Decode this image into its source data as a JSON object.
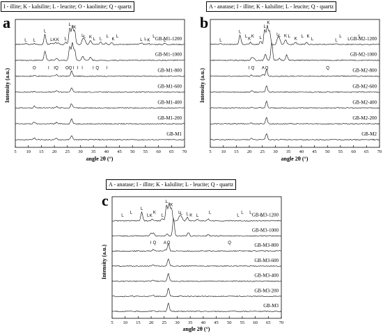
{
  "chart_data": [
    {
      "type": "line",
      "panel": "a",
      "legend": "I - illite; K - kalsilite; L - leucite; O - kaolinite; Q - quartz",
      "xlabel": "angle 2θ (°)",
      "ylabel": "Intensity (a.u.)",
      "xlim": [
        5,
        70
      ],
      "xticks": [
        5,
        10,
        15,
        20,
        25,
        30,
        35,
        40,
        45,
        50,
        55,
        60,
        65,
        70
      ],
      "series": [
        {
          "name": "GB-M1-1200",
          "peaks": [
            [
              16.4,
              0.55
            ],
            [
              25.9,
              0.9
            ],
            [
              26.9,
              1.0
            ],
            [
              27.8,
              0.75
            ],
            [
              30.9,
              0.3
            ],
            [
              31.6,
              0.25
            ],
            [
              33.9,
              0.22
            ],
            [
              37.8,
              0.12
            ],
            [
              39.8,
              0.1
            ],
            [
              42.0,
              0.12
            ],
            [
              9.0,
              0.05
            ],
            [
              12.3,
              0.05
            ],
            [
              18.9,
              0.08
            ],
            [
              20.4,
              0.08
            ],
            [
              21.3,
              0.08
            ],
            [
              24.3,
              0.12
            ],
            [
              53.4,
              0.08
            ],
            [
              56.2,
              0.06
            ],
            [
              62.4,
              0.06
            ]
          ],
          "labels": [
            [
              9.0,
              "L"
            ],
            [
              12.3,
              "L"
            ],
            [
              16.4,
              "L"
            ],
            [
              18.9,
              "L"
            ],
            [
              20.0,
              "K"
            ],
            [
              21.3,
              "K"
            ],
            [
              24.3,
              "L"
            ],
            [
              25.9,
              "L"
            ],
            [
              27.8,
              "K"
            ],
            [
              30.9,
              "L"
            ],
            [
              31.6,
              "L"
            ],
            [
              33.9,
              "K"
            ],
            [
              35.3,
              "L"
            ],
            [
              37.8,
              "L"
            ],
            [
              40.4,
              "L"
            ],
            [
              42.6,
              "K"
            ],
            [
              44.2,
              "L"
            ],
            [
              53.4,
              "L"
            ],
            [
              55.0,
              "L"
            ],
            [
              56.2,
              "K"
            ],
            [
              58.2,
              "L"
            ],
            [
              62.4,
              "L"
            ]
          ]
        },
        {
          "name": "GB-M1-1000",
          "peaks": [
            [
              16.4,
              0.5
            ],
            [
              25.9,
              0.75
            ],
            [
              26.9,
              0.95
            ],
            [
              27.8,
              0.55
            ],
            [
              30.9,
              0.25
            ],
            [
              33.9,
              0.18
            ],
            [
              20.9,
              0.1
            ]
          ],
          "labels": []
        },
        {
          "name": "GB-M1-800",
          "peaks": [
            [
              26.6,
              0.35
            ],
            [
              20.8,
              0.1
            ],
            [
              12.3,
              0.05
            ]
          ],
          "labels": [
            [
              12.3,
              "O"
            ],
            [
              17.8,
              "I"
            ],
            [
              20.0,
              "I"
            ],
            [
              20.9,
              "Q"
            ],
            [
              24.9,
              "O"
            ],
            [
              26.1,
              "Q"
            ],
            [
              27.4,
              "I"
            ],
            [
              29.0,
              "I"
            ],
            [
              30.7,
              "I"
            ],
            [
              34.9,
              "I"
            ],
            [
              36.5,
              "Q"
            ],
            [
              40.2,
              "I"
            ]
          ]
        },
        {
          "name": "GB-M1-600",
          "peaks": [
            [
              26.6,
              0.3
            ],
            [
              20.8,
              0.1
            ],
            [
              12.3,
              0.05
            ]
          ],
          "labels": []
        },
        {
          "name": "GB-M1-400",
          "peaks": [
            [
              26.6,
              0.3
            ],
            [
              20.8,
              0.1
            ],
            [
              12.3,
              0.12
            ]
          ],
          "labels": []
        },
        {
          "name": "GB-M1-200",
          "peaks": [
            [
              26.6,
              0.35
            ],
            [
              20.8,
              0.1
            ],
            [
              12.3,
              0.12
            ]
          ],
          "labels": []
        },
        {
          "name": "GB-M1",
          "peaks": [
            [
              26.6,
              0.3
            ],
            [
              20.8,
              0.1
            ],
            [
              12.3,
              0.12
            ]
          ],
          "labels": []
        }
      ]
    },
    {
      "type": "line",
      "panel": "b",
      "legend": "A - anatase; I - illite; K - kalsilite; L - leucite; Q - quartz",
      "xlabel": "angle 2θ (°)",
      "ylabel": "Intensity (a.u.)",
      "xlim": [
        5,
        70
      ],
      "xticks": [
        5,
        10,
        15,
        20,
        25,
        30,
        35,
        40,
        45,
        50,
        55,
        60,
        65,
        70
      ],
      "series": [
        {
          "name": "GB-M2-1200",
          "peaks": [
            [
              16.4,
              0.5
            ],
            [
              25.9,
              0.8
            ],
            [
              26.9,
              1.0
            ],
            [
              27.8,
              0.7
            ],
            [
              30.9,
              0.35
            ],
            [
              31.6,
              0.3
            ],
            [
              33.9,
              0.28
            ],
            [
              20.4,
              0.12
            ],
            [
              24.3,
              0.18
            ],
            [
              37.8,
              0.12
            ],
            [
              42.0,
              0.12
            ],
            [
              9.0,
              0.05
            ],
            [
              53.4,
              0.06
            ]
          ],
          "labels": [
            [
              9.0,
              "L"
            ],
            [
              16.4,
              "L"
            ],
            [
              18.8,
              "L"
            ],
            [
              20.0,
              "K"
            ],
            [
              21.3,
              "K"
            ],
            [
              24.3,
              "L"
            ],
            [
              25.9,
              "L"
            ],
            [
              27.3,
              "K"
            ],
            [
              30.9,
              "L"
            ],
            [
              31.6,
              "L"
            ],
            [
              33.9,
              "K"
            ],
            [
              35.3,
              "L"
            ],
            [
              37.8,
              "K"
            ],
            [
              40.4,
              "L"
            ],
            [
              42.6,
              "K"
            ],
            [
              44.2,
              "L"
            ],
            [
              53.4,
              "L"
            ],
            [
              55.0,
              "L"
            ],
            [
              58.2,
              "L"
            ],
            [
              62.4,
              "L"
            ]
          ]
        },
        {
          "name": "GB-M2-1000",
          "peaks": [
            [
              28.6,
              1.0
            ],
            [
              26.2,
              0.35
            ],
            [
              34.3,
              0.3
            ],
            [
              20.9,
              0.12
            ],
            [
              21.7,
              0.12
            ],
            [
              31.6,
              0.1
            ]
          ],
          "labels": []
        },
        {
          "name": "GB-M2-800",
          "peaks": [
            [
              25.3,
              0.12
            ],
            [
              26.6,
              0.45
            ],
            [
              20.8,
              0.08
            ]
          ],
          "labels": [
            [
              19.9,
              "I"
            ],
            [
              21.3,
              "Q"
            ],
            [
              25.3,
              "A"
            ],
            [
              26.7,
              "Q"
            ],
            [
              50.1,
              "Q"
            ]
          ]
        },
        {
          "name": "GB-M2-600",
          "peaks": [
            [
              26.6,
              0.45
            ],
            [
              20.8,
              0.08
            ]
          ],
          "labels": []
        },
        {
          "name": "GB-M2-400",
          "peaks": [
            [
              26.6,
              0.45
            ],
            [
              20.8,
              0.08
            ]
          ],
          "labels": []
        },
        {
          "name": "GB-M2-200",
          "peaks": [
            [
              26.6,
              0.45
            ],
            [
              20.8,
              0.08
            ]
          ],
          "labels": []
        },
        {
          "name": "GB-M2",
          "peaks": [
            [
              26.6,
              0.45
            ],
            [
              20.8,
              0.08
            ]
          ],
          "labels": []
        }
      ]
    },
    {
      "type": "line",
      "panel": "c",
      "legend": "A - anatase; I - illite; K - kalsilite; L - leucite; Q - quartz",
      "xlabel": "angle 2θ (°)",
      "ylabel": "Intensity (a.u.)",
      "xlim": [
        5,
        70
      ],
      "xticks": [
        5,
        10,
        15,
        20,
        25,
        30,
        35,
        40,
        45,
        50,
        55,
        60,
        65,
        70
      ],
      "series": [
        {
          "name": "GB-M3-1200",
          "peaks": [
            [
              16.4,
              0.5
            ],
            [
              25.9,
              0.9
            ],
            [
              26.9,
              1.0
            ],
            [
              27.8,
              0.72
            ],
            [
              30.9,
              0.28
            ],
            [
              31.6,
              0.24
            ],
            [
              33.9,
              0.2
            ],
            [
              24.3,
              0.12
            ],
            [
              20.4,
              0.1
            ],
            [
              37.8,
              0.1
            ],
            [
              42.0,
              0.1
            ]
          ],
          "labels": [
            [
              9.0,
              "L"
            ],
            [
              12.3,
              "L"
            ],
            [
              16.4,
              "L"
            ],
            [
              18.8,
              "L"
            ],
            [
              19.9,
              "K"
            ],
            [
              21.3,
              "K"
            ],
            [
              24.3,
              "L"
            ],
            [
              25.9,
              "L"
            ],
            [
              27.8,
              "K"
            ],
            [
              30.9,
              "L"
            ],
            [
              31.6,
              "L"
            ],
            [
              33.9,
              "L"
            ],
            [
              35.3,
              "K"
            ],
            [
              37.8,
              "L"
            ],
            [
              42.6,
              "L"
            ],
            [
              53.4,
              "L"
            ],
            [
              55.0,
              "L"
            ],
            [
              58.2,
              "L"
            ],
            [
              62.4,
              "L"
            ]
          ]
        },
        {
          "name": "GB-M3-1000",
          "peaks": [
            [
              28.6,
              1.0
            ],
            [
              20.9,
              0.2
            ],
            [
              19.9,
              0.15
            ],
            [
              34.3,
              0.2
            ],
            [
              26.2,
              0.12
            ],
            [
              41.9,
              0.08
            ]
          ],
          "labels": []
        },
        {
          "name": "GB-M3-800",
          "peaks": [
            [
              26.6,
              0.55
            ],
            [
              20.8,
              0.1
            ],
            [
              25.3,
              0.06
            ]
          ],
          "labels": [
            [
              19.9,
              "I"
            ],
            [
              21.3,
              "Q"
            ],
            [
              25.3,
              "A"
            ],
            [
              26.7,
              "Q"
            ],
            [
              50.1,
              "Q"
            ]
          ]
        },
        {
          "name": "GB-M3-600",
          "peaks": [
            [
              26.6,
              0.55
            ],
            [
              20.8,
              0.08
            ]
          ],
          "labels": []
        },
        {
          "name": "GB-M3-400",
          "peaks": [
            [
              26.6,
              0.55
            ],
            [
              20.8,
              0.08
            ]
          ],
          "labels": []
        },
        {
          "name": "GB-M3-200",
          "peaks": [
            [
              26.6,
              0.6
            ],
            [
              20.8,
              0.08
            ]
          ],
          "labels": []
        },
        {
          "name": "GB-M3",
          "peaks": [
            [
              26.6,
              0.65
            ],
            [
              20.8,
              0.08
            ]
          ],
          "labels": []
        }
      ]
    }
  ]
}
